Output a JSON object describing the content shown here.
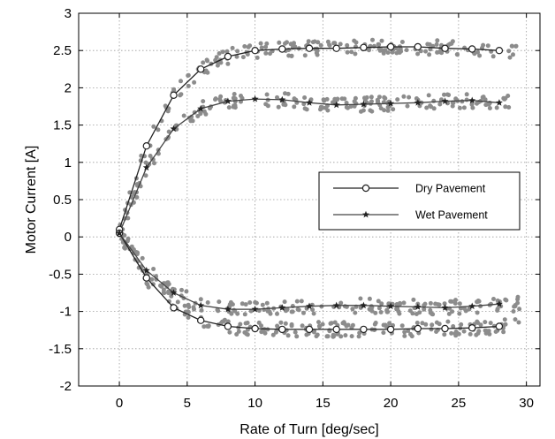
{
  "chart_data": {
    "type": "line",
    "title": "",
    "xlabel": "Rate of Turn [deg/sec]",
    "ylabel": "Motor Current [A]",
    "xlim": [
      -3,
      31
    ],
    "ylim": [
      -2,
      3
    ],
    "xticks": [
      0,
      5,
      10,
      15,
      20,
      25,
      30
    ],
    "yticks": [
      -2,
      -1.5,
      -1,
      -0.5,
      0,
      0.5,
      1,
      1.5,
      2,
      2.5,
      3
    ],
    "grid": true,
    "legend_position": "center-right",
    "series": [
      {
        "name": "Dry Pavement",
        "marker": "open-circle",
        "color": "#222222",
        "branches": [
          {
            "x": [
              0,
              2,
              4,
              6,
              8,
              10,
              12,
              14,
              16,
              18,
              20,
              22,
              24,
              26,
              28
            ],
            "y": [
              0.1,
              1.22,
              1.9,
              2.25,
              2.42,
              2.5,
              2.52,
              2.53,
              2.53,
              2.54,
              2.55,
              2.55,
              2.53,
              2.52,
              2.5
            ]
          },
          {
            "x": [
              0,
              2,
              4,
              6,
              8,
              10,
              12,
              14,
              16,
              18,
              20,
              22,
              24,
              26,
              28
            ],
            "y": [
              0.05,
              -0.55,
              -0.95,
              -1.12,
              -1.2,
              -1.23,
              -1.24,
              -1.24,
              -1.24,
              -1.24,
              -1.24,
              -1.23,
              -1.23,
              -1.22,
              -1.2
            ]
          }
        ]
      },
      {
        "name": "Wet Pavement",
        "marker": "filled-star",
        "color": "#444444",
        "branches": [
          {
            "x": [
              0,
              2,
              4,
              6,
              8,
              10,
              12,
              14,
              16,
              18,
              20,
              22,
              24,
              26,
              28
            ],
            "y": [
              0.05,
              0.93,
              1.45,
              1.72,
              1.82,
              1.85,
              1.84,
              1.8,
              1.77,
              1.78,
              1.79,
              1.8,
              1.82,
              1.83,
              1.8
            ]
          },
          {
            "x": [
              0,
              2,
              4,
              6,
              8,
              10,
              12,
              14,
              16,
              18,
              20,
              22,
              24,
              26,
              28
            ],
            "y": [
              0.05,
              -0.45,
              -0.75,
              -0.92,
              -0.97,
              -0.97,
              -0.95,
              -0.93,
              -0.92,
              -0.92,
              -0.93,
              -0.94,
              -0.95,
              -0.93,
              -0.9
            ]
          }
        ]
      }
    ],
    "scatter_color": "#8c8c8c"
  }
}
